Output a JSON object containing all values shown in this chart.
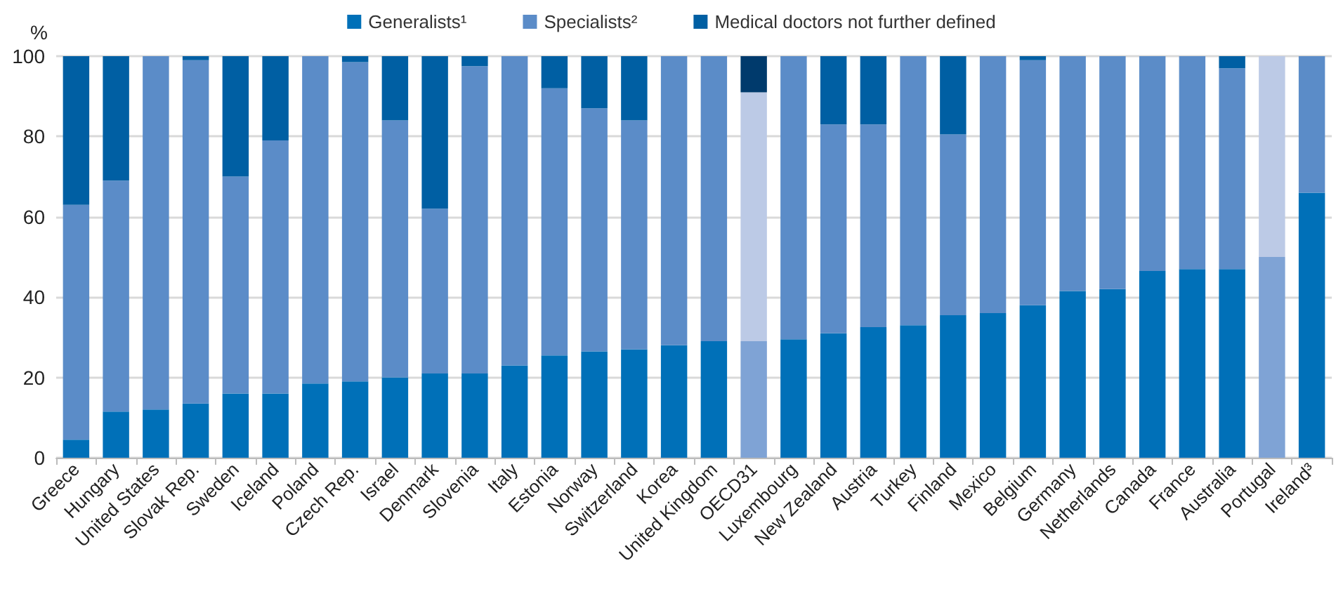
{
  "chart_data": {
    "type": "bar",
    "stacked": true,
    "ylabel": "%",
    "ylim": [
      0,
      100
    ],
    "yticks": [
      0,
      20,
      40,
      60,
      80,
      100
    ],
    "grid": "y",
    "legend": "top",
    "categories": [
      "Greece",
      "Hungary",
      "United States",
      "Slovak Rep.",
      "Sweden",
      "Iceland",
      "Poland",
      "Czech Rep.",
      "Israel",
      "Denmark",
      "Slovenia",
      "Italy",
      "Estonia",
      "Norway",
      "Switzerland",
      "Korea",
      "United Kingdom",
      "OECD31",
      "Luxembourg",
      "New Zealand",
      "Austria",
      "Turkey",
      "Finland",
      "Mexico",
      "Belgium",
      "Germany",
      "Netherlands",
      "Canada",
      "France",
      "Australia",
      "Portugal",
      "Ireland³"
    ],
    "series": [
      {
        "name": "Generalists¹",
        "color": "#0070b8",
        "colors": [
          "#0070b8",
          "#0070b8",
          "#0070b8",
          "#0070b8",
          "#0070b8",
          "#0070b8",
          "#0070b8",
          "#0070b8",
          "#0070b8",
          "#0070b8",
          "#0070b8",
          "#0070b8",
          "#0070b8",
          "#0070b8",
          "#0070b8",
          "#0070b8",
          "#0070b8",
          "#7fa3d5",
          "#0070b8",
          "#0070b8",
          "#0070b8",
          "#0070b8",
          "#0070b8",
          "#0070b8",
          "#0070b8",
          "#0070b8",
          "#0070b8",
          "#0070b8",
          "#0070b8",
          "#0070b8",
          "#7fa3d5",
          "#0070b8"
        ],
        "values": [
          4.5,
          11.5,
          12,
          13.5,
          16,
          16,
          18.5,
          19,
          20,
          21,
          21,
          23,
          25.5,
          26.5,
          27,
          28,
          29,
          29,
          29.5,
          31,
          32.5,
          33,
          35.5,
          36,
          38,
          41.5,
          42,
          46.5,
          47,
          47,
          50,
          66
        ]
      },
      {
        "name": "Specialists²",
        "color": "#5b8cc8",
        "colors": [
          "#5b8cc8",
          "#5b8cc8",
          "#5b8cc8",
          "#5b8cc8",
          "#5b8cc8",
          "#5b8cc8",
          "#5b8cc8",
          "#5b8cc8",
          "#5b8cc8",
          "#5b8cc8",
          "#5b8cc8",
          "#5b8cc8",
          "#5b8cc8",
          "#5b8cc8",
          "#5b8cc8",
          "#5b8cc8",
          "#5b8cc8",
          "#bccae6",
          "#5b8cc8",
          "#5b8cc8",
          "#5b8cc8",
          "#5b8cc8",
          "#5b8cc8",
          "#5b8cc8",
          "#5b8cc8",
          "#5b8cc8",
          "#5b8cc8",
          "#5b8cc8",
          "#5b8cc8",
          "#5b8cc8",
          "#bccae6",
          "#5b8cc8"
        ],
        "values": [
          58.5,
          57.5,
          88,
          85.5,
          54,
          63,
          81.5,
          79.5,
          64,
          41,
          76.5,
          77,
          66.5,
          60.5,
          57,
          72,
          71,
          62,
          70.5,
          52,
          50.5,
          67,
          45,
          64,
          61,
          58.5,
          58,
          53.5,
          53,
          50,
          50,
          34
        ]
      },
      {
        "name": "Medical doctors not further defined",
        "color": "#005fa3",
        "colors": [
          "#005fa3",
          "#005fa3",
          "#005fa3",
          "#005fa3",
          "#005fa3",
          "#005fa3",
          "#005fa3",
          "#005fa3",
          "#005fa3",
          "#005fa3",
          "#005fa3",
          "#005fa3",
          "#005fa3",
          "#005fa3",
          "#005fa3",
          "#005fa3",
          "#005fa3",
          "#003a6c",
          "#005fa3",
          "#005fa3",
          "#005fa3",
          "#005fa3",
          "#005fa3",
          "#005fa3",
          "#005fa3",
          "#005fa3",
          "#005fa3",
          "#005fa3",
          "#005fa3",
          "#005fa3",
          "#005fa3",
          "#005fa3"
        ],
        "values": [
          37,
          31,
          0,
          1,
          30,
          21,
          0,
          1.5,
          16,
          38,
          2.5,
          0,
          8,
          13,
          16,
          0,
          0,
          9,
          0,
          17,
          17,
          0,
          19.5,
          0,
          1,
          0,
          0,
          0,
          0,
          3,
          0,
          0
        ]
      }
    ]
  }
}
